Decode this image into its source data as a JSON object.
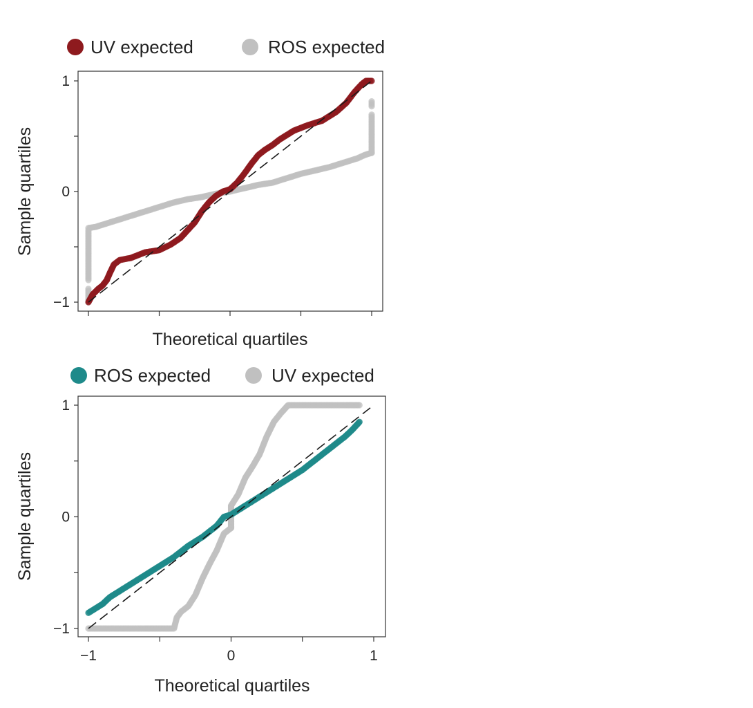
{
  "colors": {
    "uv": "#8e1a1e",
    "ros": "#1e8a8a",
    "gray": "#c0c0c0",
    "axis": "#333333",
    "refline": "#1a1a1a"
  },
  "chart_data": [
    {
      "type": "scatter",
      "subtype": "qq-plot",
      "legend": [
        {
          "label": "UV expected",
          "color": "#8e1a1e"
        },
        {
          "label": "ROS expected",
          "color": "#c0c0c0"
        }
      ],
      "legend_position": "top-left-outside",
      "xlabel": "Theoretical quartiles",
      "ylabel": "Sample quartiles",
      "xlim": [
        -1,
        1
      ],
      "ylim": [
        -1,
        1
      ],
      "x_ticks": [
        -1,
        -0.5,
        0,
        0.5,
        1
      ],
      "x_tick_labels": [
        "",
        "",
        "",
        "",
        ""
      ],
      "y_ticks": [
        -1,
        -0.5,
        0,
        0.5,
        1
      ],
      "y_tick_labels": [
        "−1",
        "",
        "0",
        "",
        "1"
      ],
      "reference_line": [
        [
          -1,
          -1
        ],
        [
          1,
          1
        ]
      ],
      "grid": false,
      "series": [
        {
          "name": "UV expected",
          "color": "#8e1a1e",
          "curve": [
            [
              -1.0,
              -1.0
            ],
            [
              -0.97,
              -0.93
            ],
            [
              -0.93,
              -0.88
            ],
            [
              -0.9,
              -0.85
            ],
            [
              -0.87,
              -0.8
            ],
            [
              -0.85,
              -0.74
            ],
            [
              -0.82,
              -0.66
            ],
            [
              -0.78,
              -0.62
            ],
            [
              -0.7,
              -0.6
            ],
            [
              -0.6,
              -0.55
            ],
            [
              -0.5,
              -0.53
            ],
            [
              -0.42,
              -0.48
            ],
            [
              -0.35,
              -0.42
            ],
            [
              -0.3,
              -0.35
            ],
            [
              -0.25,
              -0.28
            ],
            [
              -0.2,
              -0.18
            ],
            [
              -0.15,
              -0.1
            ],
            [
              -0.1,
              -0.04
            ],
            [
              -0.05,
              0.0
            ],
            [
              0.0,
              0.02
            ],
            [
              0.05,
              0.08
            ],
            [
              0.1,
              0.16
            ],
            [
              0.15,
              0.25
            ],
            [
              0.2,
              0.33
            ],
            [
              0.25,
              0.38
            ],
            [
              0.3,
              0.42
            ],
            [
              0.35,
              0.47
            ],
            [
              0.45,
              0.55
            ],
            [
              0.55,
              0.6
            ],
            [
              0.65,
              0.64
            ],
            [
              0.75,
              0.72
            ],
            [
              0.82,
              0.8
            ],
            [
              0.88,
              0.9
            ],
            [
              0.93,
              0.97
            ],
            [
              0.96,
              1.0
            ],
            [
              1.0,
              1.0
            ]
          ]
        },
        {
          "name": "ROS expected",
          "color": "#c0c0c0",
          "curve": [
            [
              -1.0,
              -0.33
            ],
            [
              -0.95,
              -0.32
            ],
            [
              -0.9,
              -0.3
            ],
            [
              -0.8,
              -0.26
            ],
            [
              -0.7,
              -0.22
            ],
            [
              -0.6,
              -0.18
            ],
            [
              -0.5,
              -0.14
            ],
            [
              -0.4,
              -0.1
            ],
            [
              -0.3,
              -0.07
            ],
            [
              -0.2,
              -0.05
            ],
            [
              -0.1,
              -0.02
            ],
            [
              0.0,
              0.0
            ],
            [
              0.1,
              0.03
            ],
            [
              0.2,
              0.06
            ],
            [
              0.3,
              0.08
            ],
            [
              0.4,
              0.12
            ],
            [
              0.5,
              0.16
            ],
            [
              0.6,
              0.19
            ],
            [
              0.7,
              0.22
            ],
            [
              0.8,
              0.26
            ],
            [
              0.9,
              0.3
            ],
            [
              0.95,
              0.33
            ],
            [
              1.0,
              0.35
            ]
          ],
          "vertical_runs": [
            {
              "x": -1.0,
              "from": -0.8,
              "to": -0.35
            },
            {
              "x": -1.0,
              "from": -1.0,
              "to": -0.88
            },
            {
              "x": 1.0,
              "from": 0.35,
              "to": 0.7
            },
            {
              "x": 1.0,
              "from": 0.77,
              "to": 0.82
            }
          ]
        }
      ]
    },
    {
      "type": "scatter",
      "subtype": "qq-plot",
      "legend": [
        {
          "label": "ROS expected",
          "color": "#1e8a8a"
        },
        {
          "label": "UV expected",
          "color": "#c0c0c0"
        }
      ],
      "legend_position": "top-left-outside",
      "xlabel": "Theoretical quartiles",
      "ylabel": "Sample quartiles",
      "xlim": [
        -1,
        1
      ],
      "ylim": [
        -1,
        1
      ],
      "x_ticks": [
        -1,
        -0.5,
        0,
        0.5,
        1
      ],
      "x_tick_labels": [
        "−1",
        "",
        "0",
        "",
        "1"
      ],
      "y_ticks": [
        -1,
        -0.5,
        0,
        0.5,
        1
      ],
      "y_tick_labels": [
        "−1",
        "",
        "0",
        "",
        "1"
      ],
      "reference_line": [
        [
          -1,
          -1
        ],
        [
          1,
          1
        ]
      ],
      "grid": false,
      "series": [
        {
          "name": "ROS expected",
          "color": "#1e8a8a",
          "curve": [
            [
              -1.0,
              -0.86
            ],
            [
              -0.9,
              -0.78
            ],
            [
              -0.85,
              -0.72
            ],
            [
              -0.8,
              -0.68
            ],
            [
              -0.7,
              -0.6
            ],
            [
              -0.6,
              -0.52
            ],
            [
              -0.5,
              -0.44
            ],
            [
              -0.4,
              -0.36
            ],
            [
              -0.3,
              -0.26
            ],
            [
              -0.2,
              -0.18
            ],
            [
              -0.1,
              -0.08
            ],
            [
              -0.05,
              0.0
            ],
            [
              0.0,
              0.02
            ],
            [
              0.05,
              0.06
            ],
            [
              0.1,
              0.1
            ],
            [
              0.2,
              0.18
            ],
            [
              0.3,
              0.26
            ],
            [
              0.4,
              0.34
            ],
            [
              0.5,
              0.42
            ],
            [
              0.6,
              0.52
            ],
            [
              0.7,
              0.62
            ],
            [
              0.8,
              0.72
            ],
            [
              0.85,
              0.78
            ],
            [
              0.9,
              0.85
            ]
          ]
        },
        {
          "name": "UV expected",
          "color": "#c0c0c0",
          "curve": [
            [
              -1.0,
              -1.0
            ],
            [
              -0.6,
              -1.0
            ],
            [
              -0.5,
              -1.0
            ],
            [
              -0.4,
              -1.0
            ],
            [
              -0.38,
              -0.9
            ],
            [
              -0.35,
              -0.85
            ],
            [
              -0.3,
              -0.8
            ],
            [
              -0.25,
              -0.7
            ],
            [
              -0.2,
              -0.55
            ],
            [
              -0.15,
              -0.42
            ],
            [
              -0.1,
              -0.3
            ],
            [
              -0.05,
              -0.15
            ],
            [
              0.0,
              -0.1
            ],
            [
              0.0,
              0.1
            ],
            [
              0.05,
              0.2
            ],
            [
              0.1,
              0.35
            ],
            [
              0.15,
              0.45
            ],
            [
              0.2,
              0.56
            ],
            [
              0.25,
              0.72
            ],
            [
              0.3,
              0.85
            ],
            [
              0.35,
              0.93
            ],
            [
              0.4,
              1.0
            ],
            [
              0.5,
              1.0
            ],
            [
              0.6,
              1.0
            ],
            [
              0.7,
              1.0
            ],
            [
              0.8,
              1.0
            ],
            [
              0.85,
              1.0
            ],
            [
              0.9,
              1.0
            ]
          ],
          "vertical_runs": [
            {
              "x": 0.0,
              "from": -0.1,
              "to": 0.1
            }
          ]
        }
      ]
    }
  ]
}
